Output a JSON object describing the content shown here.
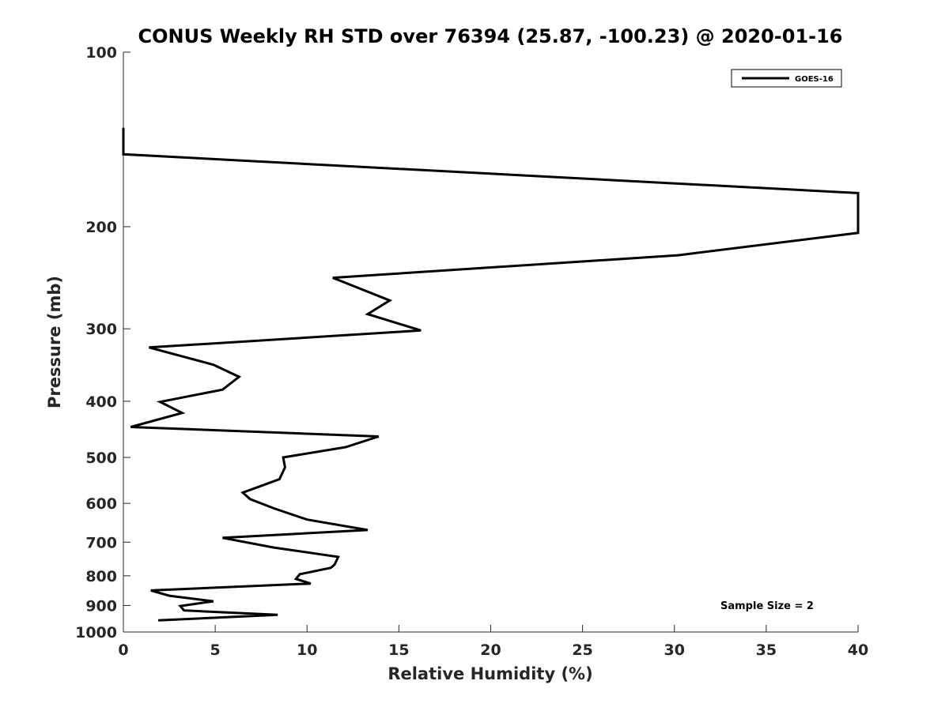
{
  "chart_data": {
    "type": "line",
    "title": "CONUS Weekly RH STD over 76394 (25.87, -100.23) @ 2020-01-16",
    "xlabel": "Relative Humidity (%)",
    "ylabel": "Pressure (mb)",
    "xlim": [
      0,
      40
    ],
    "ylim": [
      100,
      1000
    ],
    "yscale": "log",
    "yreversed": true,
    "grid": false,
    "legend_position": "top-right",
    "x_ticks": [
      0,
      5,
      10,
      15,
      20,
      25,
      30,
      35,
      40
    ],
    "y_ticks": [
      100,
      200,
      300,
      400,
      500,
      600,
      700,
      800,
      900,
      1000
    ],
    "series": [
      {
        "name": "GOES-16",
        "color": "#000000",
        "points": [
          [
            0,
            135
          ],
          [
            0,
            150
          ],
          [
            40,
            175
          ],
          [
            40,
            205
          ],
          [
            30.2,
            224
          ],
          [
            11.4,
            245
          ],
          [
            14.5,
            268
          ],
          [
            13.3,
            283
          ],
          [
            16.2,
            302
          ],
          [
            1.4,
            323
          ],
          [
            4.9,
            346
          ],
          [
            6.3,
            363
          ],
          [
            5.4,
            382
          ],
          [
            2.0,
            401
          ],
          [
            3.2,
            419
          ],
          [
            0.4,
            443
          ],
          [
            13.9,
            460
          ],
          [
            12.1,
            480
          ],
          [
            8.7,
            500
          ],
          [
            8.8,
            520
          ],
          [
            8.5,
            545
          ],
          [
            6.5,
            575
          ],
          [
            6.9,
            590
          ],
          [
            8.2,
            612
          ],
          [
            10.0,
            640
          ],
          [
            13.3,
            667
          ],
          [
            5.4,
            688
          ],
          [
            8.2,
            715
          ],
          [
            11.7,
            742
          ],
          [
            11.5,
            765
          ],
          [
            11.3,
            775
          ],
          [
            9.6,
            795
          ],
          [
            9.4,
            810
          ],
          [
            10.2,
            825
          ],
          [
            1.5,
            848
          ],
          [
            2.5,
            866
          ],
          [
            4.9,
            885
          ],
          [
            3.1,
            902
          ],
          [
            3.3,
            918
          ],
          [
            8.4,
            934
          ],
          [
            1.9,
            955
          ]
        ]
      }
    ],
    "legend_entries": [
      "GOES-16"
    ],
    "annotation": "Sample Size = 2"
  }
}
